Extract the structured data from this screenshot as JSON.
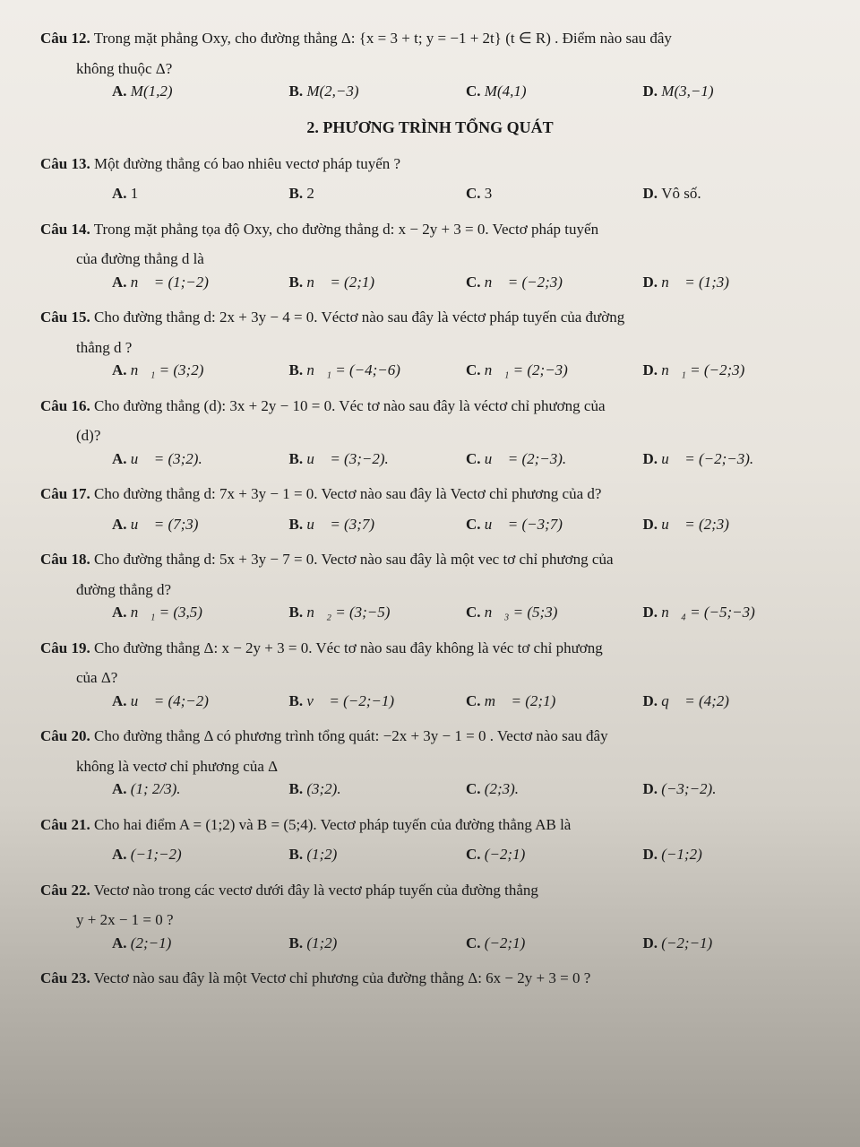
{
  "questions": {
    "q12": {
      "label": "Câu 12.",
      "text": "Trong mặt phẳng Oxy, cho đường thẳng Δ: {x = 3 + t; y = −1 + 2t} (t ∈ R) . Điểm nào sau đây",
      "sub": "không thuộc Δ?",
      "A": "M(1,2)",
      "B": "M(2,−3)",
      "C": "M(4,1)",
      "D": "M(3,−1)"
    },
    "section2": "2. PHƯƠNG TRÌNH TỔNG QUÁT",
    "q13": {
      "label": "Câu 13.",
      "text": "Một đường thẳng có bao nhiêu vectơ pháp tuyến ?",
      "A": "1",
      "B": "2",
      "C": "3",
      "D": "Vô số."
    },
    "q14": {
      "label": "Câu 14.",
      "text": "Trong mặt phẳng tọa độ Oxy, cho đường thẳng d: x − 2y + 3 = 0. Vectơ pháp tuyến",
      "sub": "của đường thẳng d là",
      "A": "n⃗ = (1;−2)",
      "B": "n⃗ = (2;1)",
      "C": "n⃗ = (−2;3)",
      "D": "n⃗ = (1;3)"
    },
    "q15": {
      "label": "Câu 15.",
      "text": "Cho đường thẳng d: 2x + 3y − 4 = 0. Véctơ nào sau đây là véctơ pháp tuyến của đường",
      "sub": "thẳng d ?",
      "A": "n⃗₁ = (3;2)",
      "B": "n⃗₁ = (−4;−6)",
      "C": "n⃗₁ = (2;−3)",
      "D": "n⃗₁ = (−2;3)"
    },
    "q16": {
      "label": "Câu 16.",
      "text": "Cho đường thẳng (d): 3x + 2y − 10 = 0. Véc tơ nào sau đây là véctơ chỉ phương của",
      "sub": "(d)?",
      "A": "u⃗ = (3;2).",
      "B": "u⃗ = (3;−2).",
      "C": "u⃗ = (2;−3).",
      "D": "u⃗ = (−2;−3)."
    },
    "q17": {
      "label": "Câu 17.",
      "text": "Cho đường thẳng d: 7x + 3y − 1 = 0. Vectơ nào sau đây là Vectơ chỉ phương của d?",
      "A": "u⃗ = (7;3)",
      "B": "u⃗ = (3;7)",
      "C": "u⃗ = (−3;7)",
      "D": "u⃗ = (2;3)"
    },
    "q18": {
      "label": "Câu 18.",
      "text": "Cho đường thẳng d: 5x + 3y − 7 = 0. Vectơ nào sau đây là một vec tơ chỉ phương của",
      "sub": "đường thẳng d?",
      "A": "n⃗₁ = (3,5)",
      "B": "n⃗₂ = (3;−5)",
      "C": "n⃗₃ = (5;3)",
      "D": "n⃗₄ = (−5;−3)"
    },
    "q19": {
      "label": "Câu 19.",
      "text": "Cho đường thẳng Δ: x − 2y + 3 = 0. Véc tơ nào sau đây không là véc tơ chỉ phương",
      "sub": "của Δ?",
      "A": "u⃗ = (4;−2)",
      "B": "v⃗ = (−2;−1)",
      "C": "m⃗ = (2;1)",
      "D": "q⃗ = (4;2)"
    },
    "q20": {
      "label": "Câu 20.",
      "text": "Cho đường thẳng Δ có phương trình tổng quát: −2x + 3y − 1 = 0 . Vectơ nào sau đây",
      "sub": "không là vectơ chỉ phương của Δ",
      "A": "(1; 2/3).",
      "B": "(3;2).",
      "C": "(2;3).",
      "D": "(−3;−2)."
    },
    "q21": {
      "label": "Câu 21.",
      "text": "Cho hai điểm A = (1;2) và B = (5;4). Vectơ pháp tuyến của đường thẳng AB là",
      "A": "(−1;−2)",
      "B": "(1;2)",
      "C": "(−2;1)",
      "D": "(−1;2)"
    },
    "q22": {
      "label": "Câu 22.",
      "text": "Vectơ nào trong các vectơ dưới đây là vectơ pháp tuyến của đường thẳng",
      "sub": "y + 2x − 1 = 0 ?",
      "A": "(2;−1)",
      "B": "(1;2)",
      "C": "(−2;1)",
      "D": "(−2;−1)"
    },
    "q23": {
      "label": "Câu 23.",
      "text": "Vectơ nào sau đây là một Vectơ chỉ phương của đường thẳng Δ: 6x − 2y + 3 = 0 ?"
    }
  }
}
